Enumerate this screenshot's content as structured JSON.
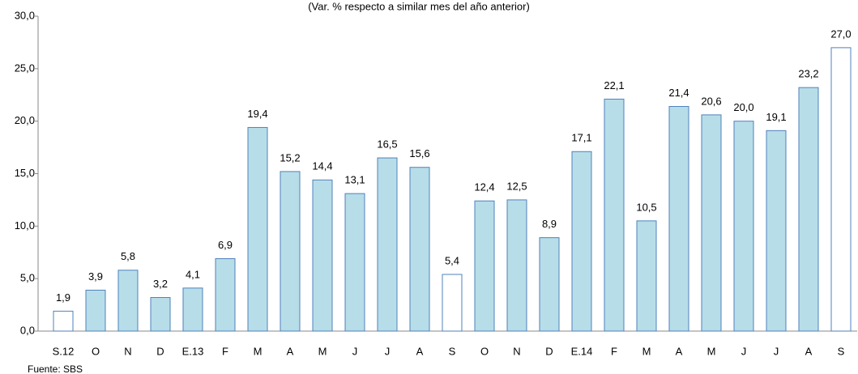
{
  "chart_data": {
    "type": "bar",
    "subtitle": "(Var. % respecto a similar mes del año anterior)",
    "source": "Fuente: SBS",
    "categories": [
      "S.12",
      "O",
      "N",
      "D",
      "E.13",
      "F",
      "M",
      "A",
      "M",
      "J",
      "J",
      "A",
      "S",
      "O",
      "N",
      "D",
      "E.14",
      "F",
      "M",
      "A",
      "M",
      "J",
      "J",
      "A",
      "S"
    ],
    "values": [
      1.9,
      3.9,
      5.8,
      3.2,
      4.1,
      6.9,
      19.4,
      15.2,
      14.4,
      13.1,
      16.5,
      15.6,
      5.4,
      12.4,
      12.5,
      8.9,
      17.1,
      22.1,
      10.5,
      21.4,
      20.6,
      20.0,
      19.1,
      23.2,
      27.0
    ],
    "value_labels": [
      "1,9",
      "3,9",
      "5,8",
      "3,2",
      "4,1",
      "6,9",
      "19,4",
      "15,2",
      "14,4",
      "13,1",
      "16,5",
      "15,6",
      "5,4",
      "12,4",
      "12,5",
      "8,9",
      "17,1",
      "22,1",
      "10,5",
      "21,4",
      "20,6",
      "20,0",
      "19,1",
      "23,2",
      "27,0"
    ],
    "colors": [
      "#ffffff",
      "#b7dde8",
      "#b7dde8",
      "#b7dde8",
      "#b7dde8",
      "#b7dde8",
      "#b7dde8",
      "#b7dde8",
      "#b7dde8",
      "#b7dde8",
      "#b7dde8",
      "#b7dde8",
      "#ffffff",
      "#b7dde8",
      "#b7dde8",
      "#b7dde8",
      "#b7dde8",
      "#b7dde8",
      "#b7dde8",
      "#b7dde8",
      "#b7dde8",
      "#b7dde8",
      "#b7dde8",
      "#b7dde8",
      "#ffffff"
    ],
    "edge_color": "#4f81bd",
    "ylim": [
      0,
      30
    ],
    "yticks": [
      {
        "value": 0,
        "label": "0,0"
      },
      {
        "value": 5,
        "label": "5,0"
      },
      {
        "value": 10,
        "label": "10,0"
      },
      {
        "value": 15,
        "label": "15,0"
      },
      {
        "value": 20,
        "label": "20,0"
      },
      {
        "value": 25,
        "label": "25,0"
      },
      {
        "value": 30,
        "label": "30,0"
      }
    ],
    "grid": false
  }
}
